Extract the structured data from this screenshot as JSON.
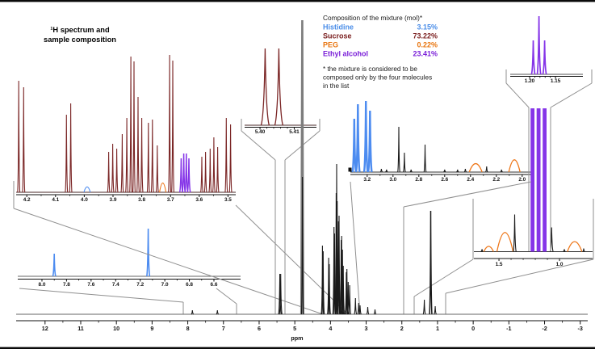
{
  "title": {
    "line1": "¹H spectrum and",
    "line2": "sample composition"
  },
  "legend": {
    "title": "Composition of the mixture (mol)*",
    "rows": [
      {
        "name": "Histidine",
        "value": "3.15%",
        "color": "#4a8de8"
      },
      {
        "name": "Sucrose",
        "value": "73.22%",
        "color": "#7b2020"
      },
      {
        "name": "PEG",
        "value": "0.22%",
        "color": "#e8740e"
      },
      {
        "name": "Ethyl alcohol",
        "value": "23.41%",
        "color": "#7a1fd8"
      }
    ],
    "footnote_lines": [
      "* the mixture is considered to be",
      "composed only by the four molecules",
      "in the list"
    ]
  },
  "colors": {
    "black": "#1a1a1a",
    "gray": "#7d7d7d",
    "sucrose": "#7b2626",
    "histidine": "#4d8cf0",
    "peg": "#ee7618",
    "ethanol": "#8535e8"
  },
  "chart_data": [
    {
      "id": "main",
      "type": "line",
      "xlabel": "ppm",
      "x_range": [
        12.81,
        -3.21
      ],
      "ticks": [
        {
          "label": "12",
          "ppm": 12
        },
        {
          "label": "11",
          "ppm": 11
        },
        {
          "label": "10",
          "ppm": 10
        },
        {
          "label": "9",
          "ppm": 9
        },
        {
          "label": "8",
          "ppm": 8
        },
        {
          "label": "7",
          "ppm": 7
        },
        {
          "label": "6",
          "ppm": 6
        },
        {
          "label": "5",
          "ppm": 5
        },
        {
          "label": "4",
          "ppm": 4
        },
        {
          "label": "3",
          "ppm": 3
        },
        {
          "label": "2",
          "ppm": 2
        },
        {
          "label": "1",
          "ppm": 1
        },
        {
          "label": "0",
          "ppm": 0
        },
        {
          "label": "-1",
          "ppm": -1
        },
        {
          "label": "-2",
          "ppm": -2
        },
        {
          "label": "-3",
          "ppm": -3
        }
      ],
      "peaks": [
        {
          "p": 7.87,
          "i": 5,
          "c": "black"
        },
        {
          "p": 7.17,
          "i": 5,
          "c": "black"
        },
        {
          "p": 5.42,
          "i": 50,
          "c": "black",
          "w": 1.6
        },
        {
          "p": 5.396,
          "i": 50,
          "c": "black",
          "w": 1.6
        },
        {
          "p": 4.79,
          "i": 364,
          "c": "gray",
          "w": 1.2,
          "sw": 2.6
        },
        {
          "p": 4.787,
          "i": 170,
          "c": "black",
          "w": 1.2
        },
        {
          "p": 4.225,
          "i": 85,
          "c": "black"
        },
        {
          "p": 4.206,
          "i": 78,
          "c": "black"
        },
        {
          "p": 4.051,
          "i": 70,
          "c": "black"
        },
        {
          "p": 4.033,
          "i": 62,
          "c": "black"
        },
        {
          "p": 3.902,
          "i": 108,
          "c": "black"
        },
        {
          "p": 3.886,
          "i": 100,
          "c": "black"
        },
        {
          "p": 3.84,
          "i": 150,
          "c": "black"
        },
        {
          "p": 3.827,
          "i": 186,
          "c": "black"
        },
        {
          "p": 3.812,
          "i": 140,
          "c": "black"
        },
        {
          "p": 3.776,
          "i": 115,
          "c": "black"
        },
        {
          "p": 3.759,
          "i": 122,
          "c": "black"
        },
        {
          "p": 3.701,
          "i": 92,
          "c": "black"
        },
        {
          "p": 3.687,
          "i": 97,
          "c": "black"
        },
        {
          "p": 3.664,
          "i": 80,
          "c": "black"
        },
        {
          "p": 3.641,
          "i": 60,
          "c": "black"
        },
        {
          "p": 3.556,
          "i": 52,
          "c": "black"
        },
        {
          "p": 3.539,
          "i": 56,
          "c": "black"
        },
        {
          "p": 3.503,
          "i": 40,
          "c": "black"
        },
        {
          "p": 3.462,
          "i": 36,
          "c": "black"
        },
        {
          "p": 3.3,
          "i": 20,
          "c": "black"
        },
        {
          "p": 3.21,
          "i": 14,
          "c": "black"
        },
        {
          "p": 3.17,
          "i": 11,
          "c": "black"
        },
        {
          "p": 2.955,
          "i": 9,
          "c": "black"
        },
        {
          "p": 2.752,
          "i": 6,
          "c": "black"
        },
        {
          "p": 1.37,
          "i": 18,
          "c": "black"
        },
        {
          "p": 1.19,
          "i": 128,
          "c": "black",
          "w": 1.5,
          "sw": 1.5
        },
        {
          "p": 1.065,
          "i": 10,
          "c": "black"
        }
      ]
    },
    {
      "id": "insetA",
      "type": "line",
      "x_range": [
        4.237,
        3.473
      ],
      "ticks": [
        {
          "label": "4.2",
          "ppm": 4.2
        },
        {
          "label": "4.1",
          "ppm": 4.1
        },
        {
          "label": "4.0",
          "ppm": 4.0
        },
        {
          "label": "3.9",
          "ppm": 3.9
        },
        {
          "label": "3.8",
          "ppm": 3.8
        },
        {
          "label": "3.7",
          "ppm": 3.7
        },
        {
          "label": "3.6",
          "ppm": 3.6
        },
        {
          "label": "3.5",
          "ppm": 3.5
        }
      ],
      "peaks": [
        {
          "p": 4.228,
          "i": 138,
          "c": "sucrose"
        },
        {
          "p": 4.211,
          "i": 130,
          "c": "sucrose"
        },
        {
          "p": 4.062,
          "i": 96,
          "c": "sucrose"
        },
        {
          "p": 4.047,
          "i": 110,
          "c": "sucrose"
        },
        {
          "p": 3.99,
          "i": 7,
          "c": "histidine",
          "w": 4,
          "s": "broad"
        },
        {
          "p": 3.915,
          "i": 50,
          "c": "sucrose"
        },
        {
          "p": 3.901,
          "i": 60,
          "c": "sucrose"
        },
        {
          "p": 3.887,
          "i": 54,
          "c": "sucrose"
        },
        {
          "p": 3.868,
          "i": 72,
          "c": "sucrose"
        },
        {
          "p": 3.852,
          "i": 92,
          "c": "sucrose"
        },
        {
          "p": 3.838,
          "i": 168,
          "c": "sucrose"
        },
        {
          "p": 3.827,
          "i": 162,
          "c": "sucrose"
        },
        {
          "p": 3.813,
          "i": 118,
          "c": "sucrose"
        },
        {
          "p": 3.8,
          "i": 92,
          "c": "sucrose"
        },
        {
          "p": 3.777,
          "i": 86,
          "c": "sucrose"
        },
        {
          "p": 3.763,
          "i": 90,
          "c": "sucrose"
        },
        {
          "p": 3.746,
          "i": 58,
          "c": "sucrose"
        },
        {
          "p": 3.727,
          "i": 12,
          "c": "peg",
          "w": 4,
          "s": "broad"
        },
        {
          "p": 3.703,
          "i": 170,
          "c": "sucrose"
        },
        {
          "p": 3.692,
          "i": 163,
          "c": "sucrose"
        },
        {
          "p": 3.663,
          "i": 42,
          "c": "ethanol",
          "w": 1.8,
          "sw": 1.5
        },
        {
          "p": 3.654,
          "i": 48,
          "c": "ethanol",
          "w": 1.8,
          "sw": 1.5
        },
        {
          "p": 3.645,
          "i": 48,
          "c": "ethanol",
          "w": 1.8,
          "sw": 1.5
        },
        {
          "p": 3.636,
          "i": 42,
          "c": "ethanol",
          "w": 1.8,
          "sw": 1.5
        },
        {
          "p": 3.591,
          "i": 44,
          "c": "sucrose"
        },
        {
          "p": 3.578,
          "i": 50,
          "c": "sucrose"
        },
        {
          "p": 3.562,
          "i": 54,
          "c": "sucrose"
        },
        {
          "p": 3.549,
          "i": 68,
          "c": "sucrose"
        },
        {
          "p": 3.536,
          "i": 56,
          "c": "sucrose"
        },
        {
          "p": 3.506,
          "i": 92,
          "c": "sucrose"
        },
        {
          "p": 3.491,
          "i": 84,
          "c": "sucrose"
        }
      ]
    },
    {
      "id": "insetB",
      "type": "line",
      "x_range": [
        5.3955,
        5.4165
      ],
      "ticks": [
        {
          "label": "5.40",
          "ppm": 5.4
        },
        {
          "label": "5.41",
          "ppm": 5.41
        }
      ],
      "peaks": [
        {
          "p": 5.4015,
          "i": 95,
          "c": "sucrose",
          "w": 5,
          "sw": 1.3
        },
        {
          "p": 5.4055,
          "i": 95,
          "c": "sucrose",
          "w": 5,
          "sw": 1.3
        }
      ]
    },
    {
      "id": "insetC",
      "type": "line",
      "x_range": [
        1.2375,
        1.097
      ],
      "ticks": [
        {
          "label": "1.20",
          "ppm": 1.2
        },
        {
          "label": "1.15",
          "ppm": 1.15
        }
      ],
      "peaks": [
        {
          "p": 1.193,
          "i": 42,
          "c": "ethanol",
          "w": 2.2,
          "sw": 1.7
        },
        {
          "p": 1.182,
          "i": 72,
          "c": "ethanol",
          "w": 2.2,
          "sw": 1.7
        },
        {
          "p": 1.171,
          "i": 42,
          "c": "ethanol",
          "w": 2.2,
          "sw": 1.7
        }
      ]
    },
    {
      "id": "insetD",
      "type": "line",
      "x_range": [
        3.33,
        1.93
      ],
      "ticks": [
        {
          "label": "3.2",
          "ppm": 3.2
        },
        {
          "label": "3.0",
          "ppm": 3.0
        },
        {
          "label": "2.8",
          "ppm": 2.8
        },
        {
          "label": "2.6",
          "ppm": 2.6
        },
        {
          "label": "2.4",
          "ppm": 2.4
        },
        {
          "label": "2.2",
          "ppm": 2.2
        },
        {
          "label": "2.0",
          "ppm": 2.0
        }
      ],
      "peaks": [
        {
          "p": 3.3,
          "i": 66,
          "c": "histidine",
          "w": 2.2,
          "sw": 2.4
        },
        {
          "p": 3.272,
          "i": 84,
          "c": "histidine",
          "w": 2.2,
          "sw": 2.4
        },
        {
          "p": 3.21,
          "i": 88,
          "c": "histidine",
          "w": 2.2,
          "sw": 2.4
        },
        {
          "p": 3.178,
          "i": 76,
          "c": "histidine",
          "w": 2.2,
          "sw": 2.4
        },
        {
          "p": 3.09,
          "i": 4,
          "c": "black"
        },
        {
          "p": 3.05,
          "i": 3,
          "c": "black"
        },
        {
          "p": 2.955,
          "i": 56,
          "c": "black",
          "w": 1.3
        },
        {
          "p": 2.912,
          "i": 24,
          "c": "black",
          "w": 1.3
        },
        {
          "p": 2.86,
          "i": 3,
          "c": "black"
        },
        {
          "p": 2.752,
          "i": 34,
          "c": "black",
          "w": 1.3
        },
        {
          "p": 2.6,
          "i": 3,
          "c": "black"
        },
        {
          "p": 2.5,
          "i": 3,
          "c": "black"
        },
        {
          "p": 2.44,
          "i": 4,
          "c": "black"
        },
        {
          "p": 2.36,
          "i": 11,
          "c": "peg",
          "w": 8,
          "s": "broad",
          "sw": 1.3
        },
        {
          "p": 2.275,
          "i": 7,
          "c": "black"
        },
        {
          "p": 2.16,
          "i": 3,
          "c": "black"
        },
        {
          "p": 2.06,
          "i": 16,
          "c": "peg",
          "w": 7,
          "s": "broad",
          "sw": 1.3
        }
      ]
    },
    {
      "id": "insetE",
      "type": "line",
      "x_range": [
        8.197,
        6.383
      ],
      "ticks": [
        {
          "label": "8.0",
          "ppm": 8.0
        },
        {
          "label": "7.8",
          "ppm": 7.8
        },
        {
          "label": "7.6",
          "ppm": 7.6
        },
        {
          "label": "7.4",
          "ppm": 7.4
        },
        {
          "label": "7.2",
          "ppm": 7.2
        },
        {
          "label": "7.0",
          "ppm": 7.0
        },
        {
          "label": "6.8",
          "ppm": 6.8
        },
        {
          "label": "6.6",
          "ppm": 6.6
        }
      ],
      "peaks": [
        {
          "p": 7.9,
          "i": 28,
          "c": "histidine",
          "w": 1.8,
          "sw": 1.6
        },
        {
          "p": 7.135,
          "i": 59,
          "c": "histidine",
          "w": 1.8,
          "sw": 1.6
        }
      ]
    },
    {
      "id": "insetF",
      "type": "line",
      "x_range": [
        1.707,
        0.727
      ],
      "ticks": [
        {
          "label": "1.5",
          "ppm": 1.5
        },
        {
          "label": "1.0",
          "ppm": 1.0
        }
      ],
      "peaks": [
        {
          "p": 1.64,
          "i": 3,
          "c": "black"
        },
        {
          "p": 1.585,
          "i": 7,
          "c": "peg",
          "w": 6,
          "s": "broad",
          "sw": 1.3
        },
        {
          "p": 1.45,
          "i": 25,
          "c": "peg",
          "w": 10,
          "s": "broad",
          "sw": 1.3
        },
        {
          "p": 1.37,
          "i": 46,
          "c": "black",
          "w": 1.8
        },
        {
          "p": 1.223,
          "i": 177,
          "c": "ethanol",
          "w": 4,
          "s": "bar"
        },
        {
          "p": 1.173,
          "i": 177,
          "c": "ethanol",
          "w": 4,
          "s": "bar"
        },
        {
          "p": 1.123,
          "i": 177,
          "c": "ethanol",
          "w": 4,
          "s": "bar"
        },
        {
          "p": 1.065,
          "i": 30,
          "c": "black",
          "w": 1.8
        },
        {
          "p": 0.96,
          "i": 3,
          "c": "black"
        },
        {
          "p": 0.875,
          "i": 13,
          "c": "peg",
          "w": 9,
          "s": "broad",
          "sw": 1.3
        },
        {
          "p": 0.8,
          "i": 4,
          "c": "black"
        }
      ]
    }
  ]
}
